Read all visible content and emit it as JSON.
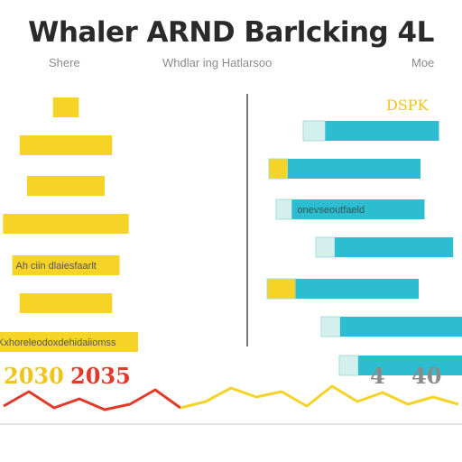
{
  "title": "Whaler ARND Barlcking 4L",
  "subtitles": {
    "left": "Shere",
    "center": "Whdlar ing Hatlarsoo",
    "right": "Moe"
  },
  "colors": {
    "yellow": "#f5d327",
    "cyan": "#2dbdd0",
    "pale_cyan": "#d4f0ee",
    "red": "#e23a2a",
    "divider": "#7a7a7a",
    "baseline": "#c8c8c8"
  },
  "chart_data": [
    {
      "type": "bar",
      "orientation": "horizontal",
      "panel": "left",
      "values": [
        14,
        50,
        42,
        68,
        58,
        50,
        78
      ],
      "bar_labels": [
        "",
        "",
        "",
        "",
        "Ah ciin dlaiesfaarlt",
        "",
        "Kxhoreleodoxdehidaiiomss"
      ],
      "xlim": [
        0,
        100
      ]
    },
    {
      "type": "bar",
      "orientation": "horizontal",
      "panel": "right",
      "label": "DSPK",
      "series": [
        {
          "values": [
            14,
            12,
            10,
            12,
            18,
            12,
            12
          ]
        },
        {
          "values": [
            72,
            84,
            84,
            75,
            78,
            80,
            76
          ]
        }
      ],
      "bar_labels": [
        "",
        "",
        "onevseoutfaeld",
        "",
        "",
        "",
        ""
      ],
      "xlim": [
        0,
        100
      ]
    },
    {
      "type": "line",
      "panel": "bottom",
      "x": [
        0,
        1,
        2,
        3,
        4,
        5,
        6,
        7,
        8,
        9,
        10,
        11,
        12,
        13,
        14,
        15,
        16,
        17,
        18
      ],
      "series": [
        {
          "values": [
            20,
            36,
            18,
            28,
            16,
            22,
            38,
            18,
            null,
            null,
            null,
            null,
            null,
            null,
            null,
            null,
            null,
            null,
            null
          ]
        },
        {
          "values": [
            null,
            null,
            null,
            null,
            null,
            null,
            null,
            18,
            25,
            40,
            30,
            36,
            20,
            42,
            25,
            35,
            22,
            30,
            22
          ]
        }
      ],
      "year_labels": [
        "2030",
        "2035",
        "4",
        "40"
      ],
      "ylim": [
        0,
        50
      ]
    }
  ]
}
